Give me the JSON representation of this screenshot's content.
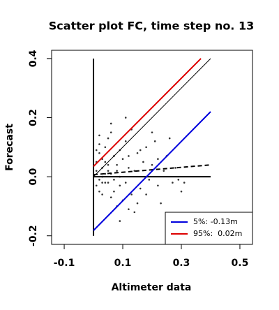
{
  "chart_data": {
    "type": "scatter",
    "title": "Scatter plot FC, time step no. 13",
    "x_label": "Altimeter data",
    "y_label": "Forecast",
    "xlim": [
      -0.143,
      0.543
    ],
    "ylim": [
      -0.229,
      0.428
    ],
    "xticks": [
      -0.1,
      0.1,
      0.3,
      0.5
    ],
    "yticks": [
      -0.2,
      {
        "value": 0.0,
        "label": "0.0"
      },
      0.2,
      0.4
    ],
    "color": "#333333",
    "x": [
      0.01,
      0.02,
      0.03,
      0.01,
      0.04,
      0.05,
      0.02,
      0.06,
      0.07,
      0.03,
      0.08,
      0.09,
      0.1,
      0.04,
      0.05,
      0.06,
      0.02,
      0.11,
      0.12,
      0.13,
      0.14,
      0.15,
      0.16,
      0.17,
      0.18,
      0.19,
      0.2,
      0.21,
      0.22,
      0.24,
      0.25,
      0.27,
      0.29,
      0.31,
      0.01,
      0.02,
      0.03,
      0.04,
      0.05,
      0.06,
      0.07,
      0.08,
      0.09,
      0.1,
      0.11,
      0.12,
      0.13,
      0.14,
      0.03,
      0.01,
      0.02,
      0.06,
      0.08,
      0.09,
      0.07,
      0.05,
      0.04,
      0.03,
      0.16,
      0.18,
      0.2,
      0.22,
      0.23,
      0.26,
      0.28,
      0.3,
      0.11,
      0.09,
      0.15,
      0.12
    ],
    "values": [
      0.02,
      -0.01,
      0.03,
      -0.03,
      0.05,
      -0.02,
      0.08,
      0.01,
      -0.05,
      -0.06,
      0.04,
      -0.03,
      0.06,
      0.1,
      0.13,
      0.15,
      0.11,
      -0.02,
      0.03,
      -0.06,
      0.02,
      0.08,
      -0.04,
      0.05,
      0.1,
      -0.01,
      0.04,
      0.12,
      -0.03,
      0.02,
      0.07,
      -0.02,
      -0.01,
      -0.02,
      0.05,
      -0.05,
      0.0,
      -0.02,
      0.02,
      -0.07,
      0.07,
      -0.1,
      0.09,
      -0.08,
      0.12,
      -0.11,
      0.16,
      -0.12,
      0.06,
      0.09,
      0.14,
      0.18,
      0.02,
      0.0,
      -0.01,
      0.04,
      0.01,
      -0.02,
      0.09,
      -0.06,
      0.15,
      0.06,
      -0.09,
      0.13,
      0.03,
      -0.05,
      0.2,
      -0.15,
      -0.09,
      0.07
    ],
    "lines": [
      {
        "x": [
          0,
          0
        ],
        "values": [
          -0.2,
          0.4
        ],
        "color": "#000000",
        "width": 2
      },
      {
        "x": [
          0,
          0.4
        ],
        "values": [
          0,
          0
        ],
        "color": "#000000",
        "width": 2
      },
      {
        "x": [
          0,
          0.4
        ],
        "values": [
          0,
          0.4
        ],
        "color": "#000000",
        "width": 1
      },
      {
        "x": [
          0,
          0.4
        ],
        "values": [
          0.007,
          0.04
        ],
        "color": "#000000",
        "width": 2,
        "dashed": true
      },
      {
        "name": "5%: -0.13m",
        "x": [
          0,
          0.4
        ],
        "values": [
          -0.182,
          0.22
        ],
        "color": "#0000dd",
        "width": 2
      },
      {
        "name": "95%:  0.02m",
        "x": [
          0,
          0.367
        ],
        "values": [
          0.035,
          0.4
        ],
        "color": "#dd0000",
        "width": 2
      }
    ],
    "legend": "bottom-right"
  }
}
